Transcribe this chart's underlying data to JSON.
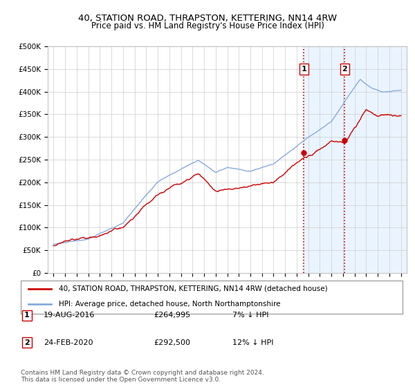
{
  "title": "40, STATION ROAD, THRAPSTON, KETTERING, NN14 4RW",
  "subtitle": "Price paid vs. HM Land Registry's House Price Index (HPI)",
  "ylabel_ticks": [
    "£0",
    "£50K",
    "£100K",
    "£150K",
    "£200K",
    "£250K",
    "£300K",
    "£350K",
    "£400K",
    "£450K",
    "£500K"
  ],
  "ytick_values": [
    0,
    50000,
    100000,
    150000,
    200000,
    250000,
    300000,
    350000,
    400000,
    450000,
    500000
  ],
  "xlim": [
    1994.5,
    2025.5
  ],
  "ylim": [
    0,
    500000
  ],
  "legend_line1": "40, STATION ROAD, THRAPSTON, KETTERING, NN14 4RW (detached house)",
  "legend_line2": "HPI: Average price, detached house, North Northamptonshire",
  "transaction1_label": "1",
  "transaction1_date": "19-AUG-2016",
  "transaction1_price": "£264,995",
  "transaction1_hpi": "7% ↓ HPI",
  "transaction1_year": 2016.63,
  "transaction2_label": "2",
  "transaction2_date": "24-FEB-2020",
  "transaction2_price": "£292,500",
  "transaction2_hpi": "12% ↓ HPI",
  "transaction2_year": 2020.14,
  "copyright_text": "Contains HM Land Registry data © Crown copyright and database right 2024.\nThis data is licensed under the Open Government Licence v3.0.",
  "line_color_red": "#cc0000",
  "line_color_blue": "#88aadd",
  "marker_color": "#cc0000",
  "vline_color": "#cc0000",
  "background_color": "#ffffff",
  "highlight_color": "#ddeeff"
}
